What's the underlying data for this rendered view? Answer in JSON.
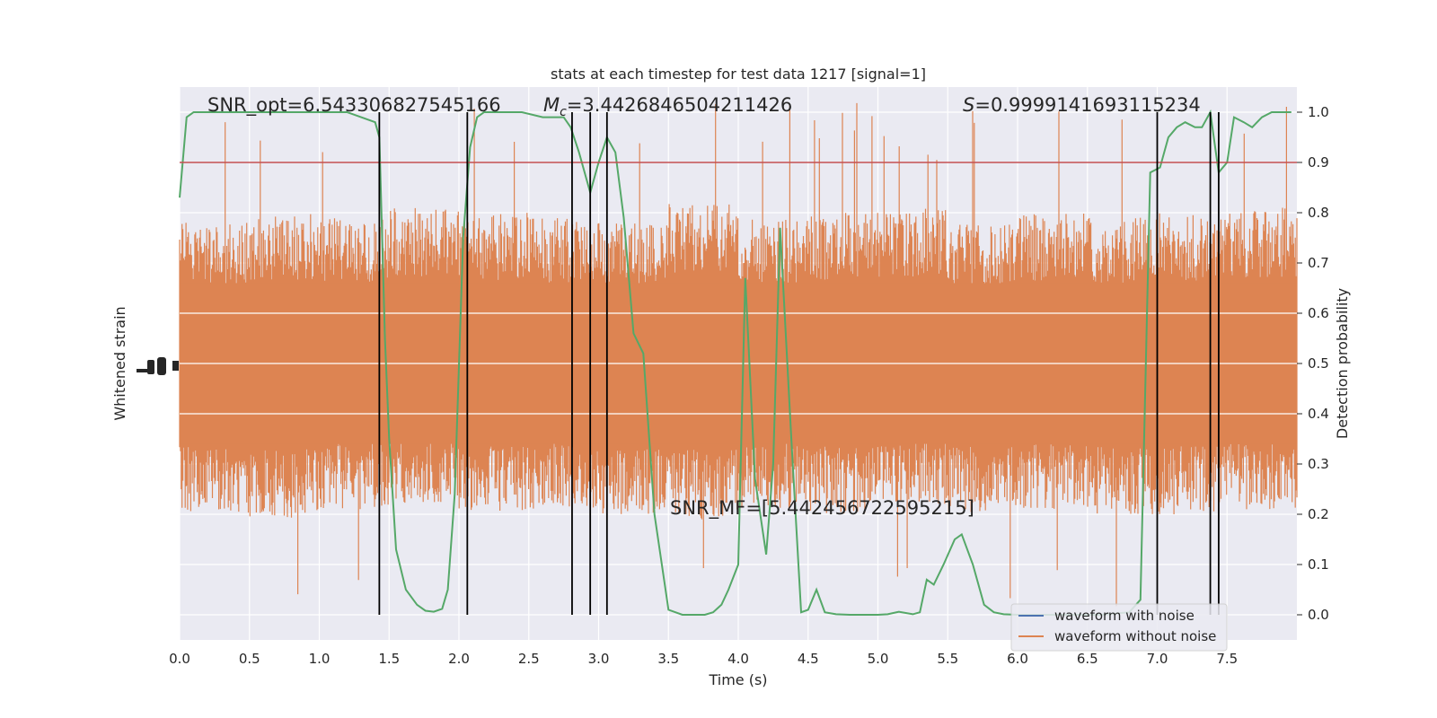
{
  "chart_data": {
    "type": "line",
    "title": "stats at each timestep for test data 1217 [signal=1]",
    "xlabel": "Time (s)",
    "ylabel_left": "Whitened strain",
    "ylabel_right": "Detection probability",
    "xlim": [
      0,
      8.0
    ],
    "ylim_right": [
      -0.05,
      1.05
    ],
    "x_ticks": [
      "0.0",
      "0.5",
      "1.0",
      "1.5",
      "2.0",
      "2.5",
      "3.0",
      "3.5",
      "4.0",
      "4.5",
      "5.0",
      "5.5",
      "6.0",
      "6.5",
      "7.0",
      "7.5"
    ],
    "y_ticks_right": [
      "0.0",
      "0.1",
      "0.2",
      "0.3",
      "0.4",
      "0.5",
      "0.6",
      "0.7",
      "0.8",
      "0.9",
      "1.0"
    ],
    "grid": true,
    "threshold": 0.9,
    "annotations": {
      "snr_opt": "SNR_opt=6.543306827545166",
      "mc_symbol": "M",
      "mc_sub": "c",
      "mc_value": "=3.4426846504211426",
      "s_symbol": "S",
      "s_value": "=0.9999141693115234",
      "snr_mf": "SNR_MF=[5.442456722595215]"
    },
    "vertical_lines": [
      1.43,
      2.06,
      2.81,
      2.94,
      3.06,
      7.0,
      7.38,
      7.44
    ],
    "legend": {
      "location": "lower-right",
      "entries": [
        {
          "label": "waveform with noise",
          "color": "#4c72b0"
        },
        {
          "label": "waveform without noise",
          "color": "#dd8452"
        }
      ]
    },
    "series": [
      {
        "axis": "right",
        "color": "#55a868",
        "x": [
          0.0,
          0.05,
          0.1,
          0.2,
          0.3,
          0.4,
          0.5,
          0.6,
          0.7,
          0.8,
          0.9,
          1.0,
          1.1,
          1.2,
          1.3,
          1.4,
          1.43,
          1.47,
          1.5,
          1.55,
          1.62,
          1.7,
          1.76,
          1.82,
          1.88,
          1.92,
          1.97,
          2.03,
          2.08,
          2.13,
          2.18,
          2.3,
          2.45,
          2.6,
          2.75,
          2.8,
          2.86,
          2.94,
          3.0,
          3.06,
          3.12,
          3.18,
          3.25,
          3.32,
          3.4,
          3.5,
          3.6,
          3.7,
          3.76,
          3.82,
          3.88,
          3.93,
          4.0,
          4.05,
          4.12,
          4.2,
          4.25,
          4.3,
          4.38,
          4.45,
          4.5,
          4.56,
          4.62,
          4.7,
          4.8,
          4.9,
          5.0,
          5.07,
          5.15,
          5.25,
          5.3,
          5.35,
          5.4,
          5.47,
          5.55,
          5.6,
          5.68,
          5.76,
          5.83,
          5.9,
          6.0,
          6.2,
          6.4,
          6.6,
          6.8,
          6.88,
          6.95,
          7.02,
          7.08,
          7.14,
          7.2,
          7.27,
          7.32,
          7.38,
          7.44,
          7.5,
          7.55,
          7.62,
          7.68,
          7.75,
          7.82,
          7.9,
          7.96
        ],
        "y": [
          0.83,
          0.99,
          1.0,
          1.0,
          1.0,
          1.0,
          1.0,
          1.0,
          1.0,
          1.0,
          1.0,
          1.0,
          1.0,
          1.0,
          0.99,
          0.98,
          0.95,
          0.55,
          0.35,
          0.13,
          0.05,
          0.02,
          0.008,
          0.006,
          0.012,
          0.05,
          0.24,
          0.75,
          0.93,
          0.99,
          1.0,
          1.0,
          1.0,
          0.99,
          0.99,
          0.97,
          0.92,
          0.84,
          0.9,
          0.95,
          0.92,
          0.79,
          0.56,
          0.52,
          0.2,
          0.01,
          0.0,
          0.0,
          0.0,
          0.005,
          0.02,
          0.05,
          0.1,
          0.67,
          0.27,
          0.12,
          0.3,
          0.77,
          0.35,
          0.005,
          0.01,
          0.05,
          0.005,
          0.001,
          0.0,
          0.0,
          0.0,
          0.001,
          0.006,
          0.001,
          0.005,
          0.07,
          0.06,
          0.1,
          0.15,
          0.16,
          0.1,
          0.02,
          0.005,
          0.001,
          0.0,
          0.0,
          0.0,
          0.0,
          0.005,
          0.03,
          0.88,
          0.89,
          0.95,
          0.97,
          0.98,
          0.97,
          0.97,
          1.0,
          0.88,
          0.9,
          0.99,
          0.98,
          0.97,
          0.99,
          1.0,
          1.0,
          1.0
        ]
      },
      {
        "axis": "right",
        "name": "waveform without noise",
        "color": "#dd8452",
        "note_band": "noise trace drawn as dense band",
        "envelope_hi": [
          0.78,
          0.8,
          0.79,
          0.81,
          0.8,
          0.79,
          0.78,
          0.82,
          0.79,
          0.8,
          0.81,
          0.78,
          0.8,
          0.79,
          0.8,
          0.81
        ],
        "envelope_lo": [
          0.2,
          0.19,
          0.21,
          0.22,
          0.2,
          0.21,
          0.2,
          0.19,
          0.21,
          0.2,
          0.22,
          0.2,
          0.21,
          0.2,
          0.2,
          0.21
        ]
      }
    ]
  }
}
